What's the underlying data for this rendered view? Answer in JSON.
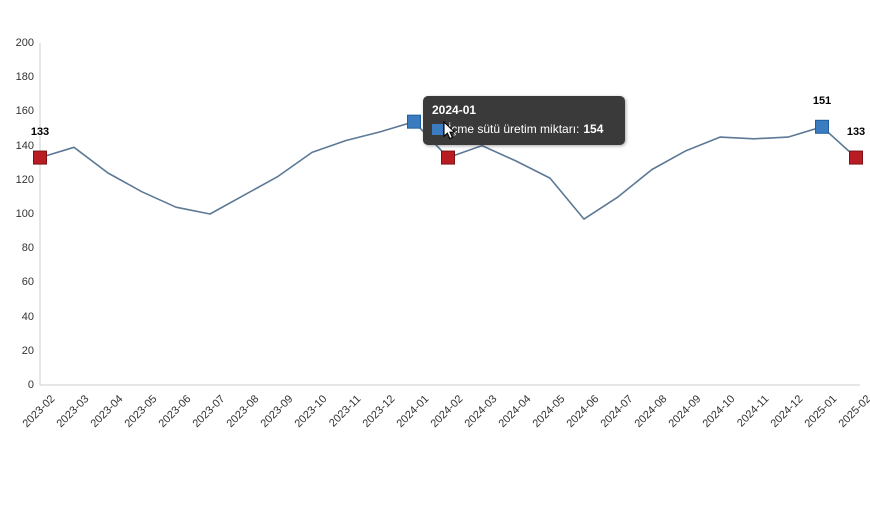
{
  "chart_data": {
    "type": "line",
    "title": "",
    "xlabel": "",
    "ylabel": "",
    "ylim": [
      0,
      200
    ],
    "ytick_step": 20,
    "grid": false,
    "legend_position": "none",
    "categories": [
      "2023-02",
      "2023-03",
      "2023-04",
      "2023-05",
      "2023-06",
      "2023-07",
      "2023-08",
      "2023-09",
      "2023-10",
      "2023-11",
      "2023-12",
      "2024-01",
      "2024-02",
      "2024-03",
      "2024-04",
      "2024-05",
      "2024-06",
      "2024-07",
      "2024-08",
      "2024-09",
      "2024-10",
      "2024-11",
      "2024-12",
      "2025-01",
      "2025-02"
    ],
    "series": [
      {
        "name": "İçme sütü üretim miktarı",
        "values": [
          133,
          139,
          124,
          113,
          104,
          100,
          111,
          122,
          136,
          143,
          148,
          154,
          133,
          140,
          131,
          121,
          97,
          110,
          126,
          137,
          145,
          144,
          145,
          151,
          133
        ]
      }
    ],
    "line_color": "#5c7995",
    "axis_color": "#cccccc",
    "axis_label_color": "#333333",
    "markers": [
      {
        "shape": "square",
        "fill": "#b91d23",
        "stroke": "#7d1216",
        "indices": [
          0,
          12,
          24
        ]
      },
      {
        "shape": "square",
        "fill": "#3b7bbf",
        "stroke": "#1f5fa0",
        "indices": [
          11,
          23
        ]
      }
    ],
    "data_labels": [
      {
        "index": 0,
        "text": "133"
      },
      {
        "index": 23,
        "text": "151"
      },
      {
        "index": 24,
        "text": "133"
      }
    ]
  },
  "tooltip": {
    "header": "2024-01",
    "label": "İçme sütü üretim miktarı:",
    "value": "154",
    "swatch_color": "#3b7bbf",
    "bg_color": "#3a3a3a"
  }
}
